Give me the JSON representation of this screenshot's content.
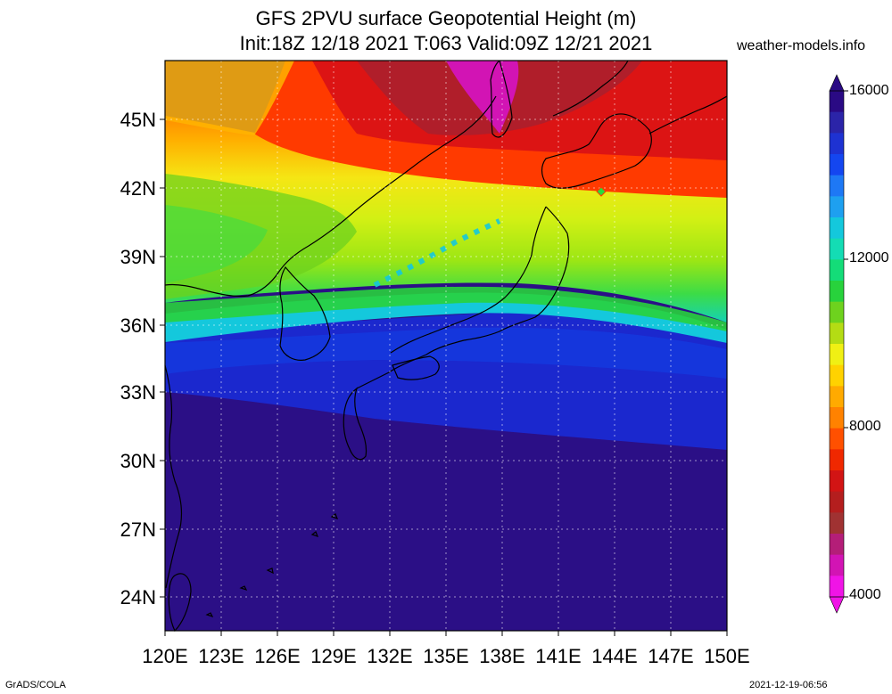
{
  "title": {
    "line1": "GFS 2PVU surface Geopotential Height (m)",
    "line2": "Init:18Z 12/18 2021 T:063 Valid:09Z 12/21 2021"
  },
  "site": "weather-models.info",
  "lat_labels": [
    "45N",
    "42N",
    "39N",
    "36N",
    "33N",
    "30N",
    "27N",
    "24N"
  ],
  "lon_labels": [
    "120E",
    "123E",
    "126E",
    "129E",
    "132E",
    "135E",
    "138E",
    "141E",
    "144E",
    "147E",
    "150E"
  ],
  "colorbar": {
    "labels": [
      "16000",
      "12000",
      "8000",
      "4000"
    ],
    "colors": [
      "#2a0a84",
      "#2b24a8",
      "#1e32d2",
      "#1446f0",
      "#1e78f5",
      "#1ea0f0",
      "#14c8dc",
      "#14dcb4",
      "#14dc78",
      "#28d23c",
      "#6ed21e",
      "#b4dc14",
      "#f0f014",
      "#ffd200",
      "#ffaa00",
      "#ff8200",
      "#ff5000",
      "#f02800",
      "#d21414",
      "#b41e1e",
      "#a03232",
      "#b41e78",
      "#d214b4",
      "#f014e6"
    ]
  },
  "footer": {
    "left": "GrADS/COLA",
    "right": "2021-12-19-06:56"
  }
}
